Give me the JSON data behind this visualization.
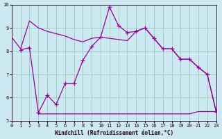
{
  "line_top_x": [
    0,
    1,
    2,
    3,
    4,
    5,
    6,
    7,
    8,
    9,
    10,
    11,
    12,
    13,
    14,
    15,
    16,
    17,
    18,
    19,
    20,
    21,
    22,
    23
  ],
  "line_top_y": [
    8.6,
    8.1,
    9.3,
    9.0,
    8.85,
    8.75,
    8.65,
    8.5,
    8.4,
    8.55,
    8.6,
    8.55,
    8.5,
    8.45,
    8.85,
    9.0,
    8.55,
    8.1,
    8.1,
    7.65,
    7.65,
    7.3,
    7.0,
    5.4
  ],
  "line_mid_x": [
    1,
    2,
    3,
    4,
    5,
    6,
    7,
    8,
    9,
    10,
    11,
    12,
    13,
    14,
    15,
    16,
    17,
    18,
    19,
    20,
    21,
    22,
    23
  ],
  "line_mid_y": [
    8.05,
    8.15,
    5.35,
    6.1,
    5.7,
    6.6,
    6.6,
    7.6,
    8.2,
    8.6,
    9.9,
    9.1,
    8.8,
    8.85,
    9.0,
    8.55,
    8.1,
    8.1,
    7.65,
    7.65,
    7.3,
    7.0,
    5.4
  ],
  "line_bot_x": [
    3,
    4,
    5,
    6,
    7,
    8,
    9,
    10,
    11,
    12,
    13,
    14,
    15,
    16,
    17,
    18,
    19,
    20,
    21,
    22,
    23
  ],
  "line_bot_y": [
    5.3,
    5.3,
    5.3,
    5.3,
    5.3,
    5.3,
    5.3,
    5.3,
    5.3,
    5.3,
    5.3,
    5.3,
    5.3,
    5.3,
    5.3,
    5.3,
    5.3,
    5.3,
    5.4,
    5.4,
    5.4
  ],
  "color": "#990099",
  "bg_color": "#cce8f0",
  "grid_color": "#99ccbb",
  "xlabel": "Windchill (Refroidissement éolien,°C)",
  "xlim": [
    0,
    23
  ],
  "ylim": [
    5,
    10
  ],
  "yticks": [
    5,
    6,
    7,
    8,
    9,
    10
  ],
  "xticks": [
    0,
    1,
    2,
    3,
    4,
    5,
    6,
    7,
    8,
    9,
    10,
    11,
    12,
    13,
    14,
    15,
    16,
    17,
    18,
    19,
    20,
    21,
    22,
    23
  ]
}
